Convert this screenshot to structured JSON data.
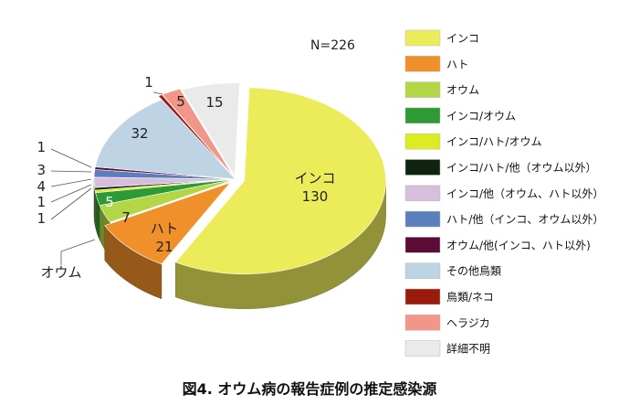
{
  "chart_data": {
    "type": "pie",
    "title": "図4. オウム病の報告症例の推定感染源",
    "annotation": "N=226",
    "legend_position": "right",
    "slices": [
      {
        "label": "インコ",
        "value": 130,
        "color": "#ecec5a"
      },
      {
        "label": "ハト",
        "value": 21,
        "color": "#f0902a"
      },
      {
        "label": "オウム",
        "value": 7,
        "color": "#b2d645"
      },
      {
        "label": "インコ/オウム",
        "value": 5,
        "color": "#2e9a35"
      },
      {
        "label": "インコ/ハト/オウム",
        "value": 1,
        "color": "#dcec22"
      },
      {
        "label": "インコ/ハト/他（オウム以外）",
        "value": 1,
        "color": "#0e2410"
      },
      {
        "label": "インコ/他（オウム、ハト以外）",
        "value": 4,
        "color": "#d8bedd"
      },
      {
        "label": "ハト/他（インコ、オウム以外）",
        "value": 3,
        "color": "#5b7fbd"
      },
      {
        "label": "オウム/他(インコ、ハト以外)",
        "value": 1,
        "color": "#5c0a36"
      },
      {
        "label": "その他鳥類",
        "value": 32,
        "color": "#bed4e4"
      },
      {
        "label": "鳥類/ネコ",
        "value": 1,
        "color": "#9a1a0c"
      },
      {
        "label": "ヘラジカ",
        "value": 5,
        "color": "#f2968a"
      },
      {
        "label": "詳細不明",
        "value": 15,
        "color": "#eaeaea"
      }
    ],
    "data_labels": [
      {
        "text": "インコ\n130",
        "slice": 0
      },
      {
        "text": "ハト\n21",
        "slice": 1
      },
      {
        "text": "7",
        "slice": 2
      },
      {
        "text": "5",
        "slice": 3
      },
      {
        "text": "1",
        "slice": 4
      },
      {
        "text": "1",
        "slice": 5
      },
      {
        "text": "4",
        "slice": 6
      },
      {
        "text": "3",
        "slice": 7
      },
      {
        "text": "1",
        "slice": 8
      },
      {
        "text": "32",
        "slice": 9
      },
      {
        "text": "1",
        "slice": 10
      },
      {
        "text": "5",
        "slice": 11
      },
      {
        "text": "15",
        "slice": 12
      },
      {
        "text": "オウム",
        "slice": 2
      }
    ]
  }
}
